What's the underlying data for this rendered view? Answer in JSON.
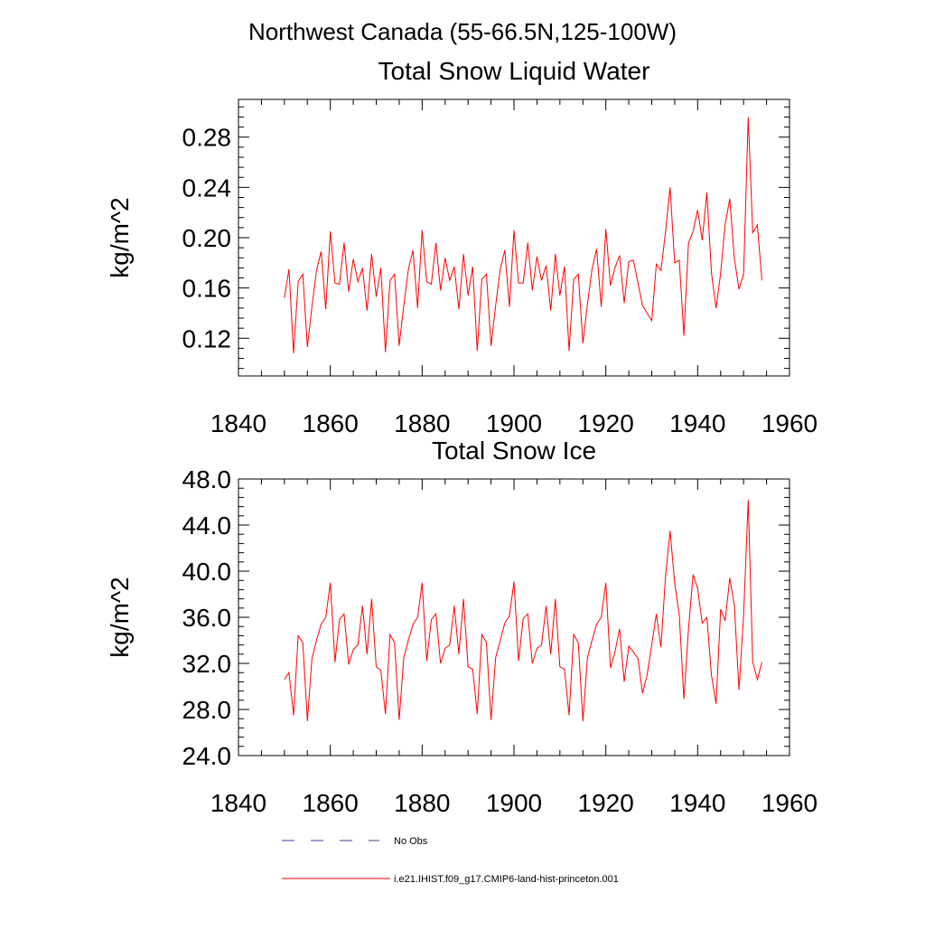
{
  "page_title": "Northwest Canada (55-66.5N,125-100W)",
  "legend": [
    {
      "label": "No Obs",
      "style": "dashed",
      "color": "#3b3b8f"
    },
    {
      "label": "i.e21.IHIST.f09_g17.CMIP6-land-hist-princeton.001",
      "style": "solid",
      "color": "#ff0000"
    }
  ],
  "chart_data": [
    {
      "type": "line",
      "title": "Total Snow Liquid Water",
      "ylabel": "kg/m^2",
      "xlabel": "",
      "xlim": [
        1840,
        1960
      ],
      "ylim": [
        0.09,
        0.31
      ],
      "xticks": [
        1840,
        1860,
        1880,
        1900,
        1920,
        1940,
        1960
      ],
      "xtick_labels": [
        "1840",
        "1860",
        "1880",
        "1900",
        "1920",
        "1940",
        "1960"
      ],
      "yticks": [
        0.12,
        0.16,
        0.2,
        0.24,
        0.28
      ],
      "ytick_labels": [
        "0.12",
        "0.16",
        "0.20",
        "0.24",
        "0.28"
      ],
      "grid": false,
      "series": [
        {
          "color": "#ff0000",
          "x": [
            1850,
            1851,
            1852,
            1853,
            1854,
            1855,
            1856,
            1857,
            1858,
            1859,
            1860,
            1861,
            1862,
            1863,
            1864,
            1865,
            1866,
            1867,
            1868,
            1869,
            1870,
            1871,
            1872,
            1873,
            1874,
            1875,
            1876,
            1877,
            1878,
            1879,
            1880,
            1881,
            1882,
            1883,
            1884,
            1885,
            1886,
            1887,
            1888,
            1889,
            1890,
            1891,
            1892,
            1893,
            1894,
            1895,
            1896,
            1897,
            1898,
            1899,
            1900,
            1901,
            1902,
            1903,
            1904,
            1905,
            1906,
            1907,
            1908,
            1909,
            1910,
            1911,
            1912,
            1913,
            1914,
            1915,
            1916,
            1917,
            1918,
            1919,
            1920,
            1921,
            1922,
            1923,
            1924,
            1925,
            1926,
            1927,
            1928,
            1929,
            1930,
            1931,
            1932,
            1933,
            1934,
            1935,
            1936,
            1937,
            1938,
            1939,
            1940,
            1941,
            1942,
            1943,
            1944,
            1945,
            1946,
            1947,
            1948,
            1949,
            1950,
            1951,
            1952,
            1953,
            1954
          ],
          "values": [
            0.152,
            0.175,
            0.108,
            0.165,
            0.171,
            0.113,
            0.145,
            0.174,
            0.189,
            0.143,
            0.205,
            0.164,
            0.163,
            0.196,
            0.157,
            0.183,
            0.165,
            0.176,
            0.142,
            0.187,
            0.153,
            0.176,
            0.109,
            0.166,
            0.171,
            0.114,
            0.146,
            0.175,
            0.19,
            0.144,
            0.206,
            0.165,
            0.163,
            0.196,
            0.158,
            0.184,
            0.166,
            0.177,
            0.143,
            0.187,
            0.154,
            0.177,
            0.11,
            0.167,
            0.171,
            0.114,
            0.146,
            0.175,
            0.19,
            0.145,
            0.206,
            0.164,
            0.164,
            0.196,
            0.158,
            0.185,
            0.166,
            0.178,
            0.142,
            0.187,
            0.154,
            0.177,
            0.11,
            0.167,
            0.171,
            0.116,
            0.147,
            0.175,
            0.191,
            0.145,
            0.207,
            0.162,
            0.176,
            0.186,
            0.148,
            0.181,
            0.182,
            0.164,
            0.146,
            0.14,
            0.134,
            0.179,
            0.174,
            0.205,
            0.24,
            0.18,
            0.182,
            0.122,
            0.196,
            0.205,
            0.222,
            0.198,
            0.236,
            0.172,
            0.144,
            0.172,
            0.211,
            0.231,
            0.183,
            0.159,
            0.171,
            0.296,
            0.204,
            0.21,
            0.166
          ]
        }
      ]
    },
    {
      "type": "line",
      "title": "Total Snow Ice",
      "ylabel": "kg/m^2",
      "xlabel": "",
      "xlim": [
        1840,
        1960
      ],
      "ylim": [
        24.0,
        48.0
      ],
      "xticks": [
        1840,
        1860,
        1880,
        1900,
        1920,
        1940,
        1960
      ],
      "xtick_labels": [
        "1840",
        "1860",
        "1880",
        "1900",
        "1920",
        "1940",
        "1960"
      ],
      "yticks": [
        24.0,
        28.0,
        32.0,
        36.0,
        40.0,
        44.0,
        48.0
      ],
      "ytick_labels": [
        "24.0",
        "28.0",
        "32.0",
        "36.0",
        "40.0",
        "44.0",
        "48.0"
      ],
      "grid": false,
      "series": [
        {
          "color": "#ff0000",
          "x": [
            1850,
            1851,
            1852,
            1853,
            1854,
            1855,
            1856,
            1857,
            1858,
            1859,
            1860,
            1861,
            1862,
            1863,
            1864,
            1865,
            1866,
            1867,
            1868,
            1869,
            1870,
            1871,
            1872,
            1873,
            1874,
            1875,
            1876,
            1877,
            1878,
            1879,
            1880,
            1881,
            1882,
            1883,
            1884,
            1885,
            1886,
            1887,
            1888,
            1889,
            1890,
            1891,
            1892,
            1893,
            1894,
            1895,
            1896,
            1897,
            1898,
            1899,
            1900,
            1901,
            1902,
            1903,
            1904,
            1905,
            1906,
            1907,
            1908,
            1909,
            1910,
            1911,
            1912,
            1913,
            1914,
            1915,
            1916,
            1917,
            1918,
            1919,
            1920,
            1921,
            1922,
            1923,
            1924,
            1925,
            1926,
            1927,
            1928,
            1929,
            1930,
            1931,
            1932,
            1933,
            1934,
            1935,
            1936,
            1937,
            1938,
            1939,
            1940,
            1941,
            1942,
            1943,
            1944,
            1945,
            1946,
            1947,
            1948,
            1949,
            1950,
            1951,
            1952,
            1953,
            1954
          ],
          "values": [
            30.6,
            31.2,
            27.5,
            34.4,
            33.8,
            27.0,
            32.4,
            34.0,
            35.4,
            36.0,
            39.0,
            32.1,
            35.8,
            36.3,
            31.9,
            33.2,
            33.6,
            37.0,
            32.8,
            37.6,
            31.7,
            31.4,
            27.6,
            34.5,
            33.8,
            27.1,
            32.5,
            34.0,
            35.4,
            36.0,
            39.0,
            32.2,
            35.8,
            36.3,
            32.0,
            33.3,
            33.6,
            37.0,
            32.8,
            37.6,
            31.7,
            31.5,
            27.6,
            34.5,
            33.8,
            27.1,
            32.5,
            34.0,
            35.5,
            36.1,
            39.1,
            32.2,
            35.9,
            36.3,
            32.0,
            33.3,
            33.6,
            37.0,
            32.8,
            37.6,
            31.7,
            31.5,
            27.5,
            34.5,
            33.8,
            27.0,
            32.5,
            34.0,
            35.4,
            36.0,
            39.0,
            31.6,
            33.0,
            35.0,
            30.4,
            33.5,
            33.0,
            32.4,
            29.4,
            31.0,
            33.6,
            36.3,
            33.4,
            39.6,
            43.5,
            39.0,
            36.2,
            28.9,
            35.0,
            39.7,
            38.5,
            35.5,
            36.0,
            31.0,
            28.5,
            36.7,
            35.7,
            39.4,
            37.0,
            29.7,
            36.2,
            46.2,
            32.1,
            30.6,
            32.1
          ]
        }
      ]
    }
  ]
}
